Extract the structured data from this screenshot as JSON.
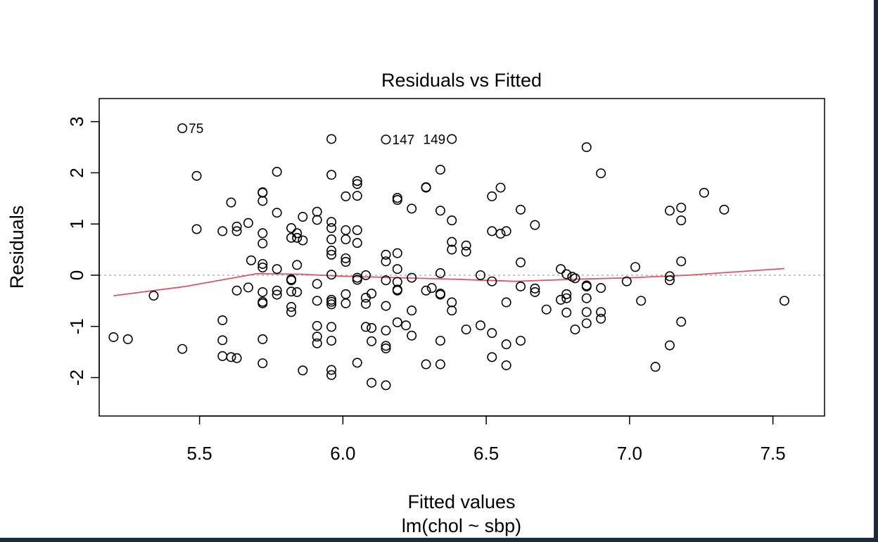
{
  "chart_data": {
    "type": "scatter",
    "title": "Residuals vs Fitted",
    "xlabel": "Fitted values",
    "subtitle": "lm(chol ~ sbp)",
    "ylabel": "Residuals",
    "xlim": [
      5.15,
      7.68
    ],
    "ylim": [
      -2.75,
      3.45
    ],
    "x_ticks": [
      5.5,
      6.0,
      6.5,
      7.0,
      7.5
    ],
    "x_tick_labels": [
      "5.5",
      "6.0",
      "6.5",
      "7.0",
      "7.5"
    ],
    "y_ticks": [
      -2,
      -1,
      0,
      1,
      2,
      3
    ],
    "y_tick_labels": [
      "-2",
      "-1",
      "0",
      "1",
      "2",
      "3"
    ],
    "reference_line": {
      "y": 0,
      "style": "dotted",
      "color": "#b0b0b0"
    },
    "smooth_color": "#df536b",
    "point_color": "#000000",
    "smooth": [
      [
        5.2,
        -0.4
      ],
      [
        5.45,
        -0.22
      ],
      [
        5.7,
        0.03
      ],
      [
        5.85,
        0.02
      ],
      [
        6.0,
        -0.02
      ],
      [
        6.2,
        -0.05
      ],
      [
        6.4,
        -0.08
      ],
      [
        6.6,
        -0.12
      ],
      [
        6.8,
        -0.08
      ],
      [
        7.0,
        -0.05
      ],
      [
        7.2,
        0.0
      ],
      [
        7.54,
        0.13
      ]
    ],
    "labeled_points": [
      {
        "label": "75",
        "x": 5.44,
        "y": 2.87,
        "side": "right"
      },
      {
        "label": "147",
        "x": 6.15,
        "y": 2.65,
        "side": "right"
      },
      {
        "label": "149",
        "x": 6.38,
        "y": 2.66,
        "side": "left"
      }
    ],
    "points": [
      [
        5.2,
        -1.21
      ],
      [
        5.25,
        -1.25
      ],
      [
        5.34,
        -0.4
      ],
      [
        5.44,
        2.87
      ],
      [
        5.44,
        -1.44
      ],
      [
        5.49,
        1.94
      ],
      [
        5.49,
        0.9
      ],
      [
        5.58,
        0.86
      ],
      [
        5.58,
        -0.88
      ],
      [
        5.58,
        -1.27
      ],
      [
        5.58,
        -1.58
      ],
      [
        5.61,
        1.42
      ],
      [
        5.61,
        -1.6
      ],
      [
        5.63,
        0.95
      ],
      [
        5.63,
        0.86
      ],
      [
        5.63,
        -0.3
      ],
      [
        5.63,
        -1.62
      ],
      [
        5.67,
        1.02
      ],
      [
        5.67,
        -0.24
      ],
      [
        5.68,
        0.29
      ],
      [
        5.72,
        1.62
      ],
      [
        5.72,
        1.61
      ],
      [
        5.72,
        1.45
      ],
      [
        5.72,
        0.82
      ],
      [
        5.72,
        0.62
      ],
      [
        5.72,
        0.22
      ],
      [
        5.72,
        0.15
      ],
      [
        5.72,
        -0.33
      ],
      [
        5.72,
        -0.52
      ],
      [
        5.72,
        -0.55
      ],
      [
        5.72,
        -1.25
      ],
      [
        5.72,
        -1.72
      ],
      [
        5.77,
        2.02
      ],
      [
        5.77,
        1.22
      ],
      [
        5.77,
        0.12
      ],
      [
        5.77,
        -0.3
      ],
      [
        5.77,
        -0.38
      ],
      [
        5.82,
        0.92
      ],
      [
        5.82,
        0.73
      ],
      [
        5.82,
        -0.08
      ],
      [
        5.82,
        -0.1
      ],
      [
        5.82,
        -0.32
      ],
      [
        5.82,
        -0.62
      ],
      [
        5.82,
        -0.72
      ],
      [
        5.84,
        0.82
      ],
      [
        5.84,
        0.73
      ],
      [
        5.84,
        0.2
      ],
      [
        5.84,
        -0.33
      ],
      [
        5.86,
        1.14
      ],
      [
        5.86,
        0.68
      ],
      [
        5.86,
        -1.86
      ],
      [
        5.91,
        1.24
      ],
      [
        5.91,
        1.08
      ],
      [
        5.91,
        -0.17
      ],
      [
        5.91,
        -0.5
      ],
      [
        5.91,
        -0.99
      ],
      [
        5.91,
        -1.2
      ],
      [
        5.91,
        -1.33
      ],
      [
        5.96,
        2.66
      ],
      [
        5.96,
        1.96
      ],
      [
        5.96,
        1.04
      ],
      [
        5.96,
        0.92
      ],
      [
        5.96,
        0.7
      ],
      [
        5.96,
        0.48
      ],
      [
        5.96,
        0.4
      ],
      [
        5.96,
        0.01
      ],
      [
        5.96,
        -0.48
      ],
      [
        5.96,
        -0.52
      ],
      [
        5.96,
        -0.57
      ],
      [
        5.96,
        -1.01
      ],
      [
        5.96,
        -1.28
      ],
      [
        5.96,
        -1.85
      ],
      [
        5.96,
        -1.95
      ],
      [
        6.01,
        1.54
      ],
      [
        6.01,
        0.88
      ],
      [
        6.01,
        0.7
      ],
      [
        6.01,
        0.33
      ],
      [
        6.01,
        0.26
      ],
      [
        6.01,
        -0.37
      ],
      [
        6.01,
        -0.55
      ],
      [
        6.05,
        1.84
      ],
      [
        6.05,
        1.78
      ],
      [
        6.05,
        1.55
      ],
      [
        6.05,
        0.88
      ],
      [
        6.05,
        0.63
      ],
      [
        6.05,
        -0.05
      ],
      [
        6.05,
        -0.09
      ],
      [
        6.05,
        -1.71
      ],
      [
        6.08,
        0.0
      ],
      [
        6.08,
        -0.44
      ],
      [
        6.08,
        -0.56
      ],
      [
        6.08,
        -1.01
      ],
      [
        6.1,
        -0.36
      ],
      [
        6.1,
        -1.03
      ],
      [
        6.1,
        -1.29
      ],
      [
        6.1,
        -2.1
      ],
      [
        6.15,
        2.65
      ],
      [
        6.15,
        0.4
      ],
      [
        6.15,
        0.27
      ],
      [
        6.15,
        -0.1
      ],
      [
        6.15,
        -0.6
      ],
      [
        6.15,
        -1.08
      ],
      [
        6.15,
        -1.38
      ],
      [
        6.15,
        -1.43
      ],
      [
        6.15,
        -2.15
      ],
      [
        6.19,
        1.51
      ],
      [
        6.19,
        1.47
      ],
      [
        6.19,
        0.43
      ],
      [
        6.19,
        0.12
      ],
      [
        6.19,
        -0.13
      ],
      [
        6.19,
        -0.28
      ],
      [
        6.19,
        -0.3
      ],
      [
        6.19,
        -0.92
      ],
      [
        6.22,
        -0.98
      ],
      [
        6.24,
        1.3
      ],
      [
        6.24,
        -0.05
      ],
      [
        6.24,
        -0.69
      ],
      [
        6.24,
        -1.18
      ],
      [
        6.29,
        1.72
      ],
      [
        6.29,
        1.71
      ],
      [
        6.29,
        -0.3
      ],
      [
        6.29,
        -1.74
      ],
      [
        6.31,
        -0.25
      ],
      [
        6.34,
        2.06
      ],
      [
        6.34,
        1.26
      ],
      [
        6.34,
        0.04
      ],
      [
        6.34,
        -0.36
      ],
      [
        6.34,
        -0.38
      ],
      [
        6.34,
        -1.28
      ],
      [
        6.34,
        -1.74
      ],
      [
        6.38,
        2.66
      ],
      [
        6.38,
        1.07
      ],
      [
        6.38,
        0.65
      ],
      [
        6.38,
        0.5
      ],
      [
        6.38,
        -0.53
      ],
      [
        6.38,
        -0.69
      ],
      [
        6.43,
        0.58
      ],
      [
        6.43,
        0.46
      ],
      [
        6.43,
        -1.06
      ],
      [
        6.48,
        0.0
      ],
      [
        6.48,
        -0.98
      ],
      [
        6.52,
        1.54
      ],
      [
        6.52,
        0.86
      ],
      [
        6.52,
        -0.12
      ],
      [
        6.52,
        -1.13
      ],
      [
        6.52,
        -1.6
      ],
      [
        6.55,
        1.71
      ],
      [
        6.55,
        0.81
      ],
      [
        6.57,
        0.86
      ],
      [
        6.57,
        -0.53
      ],
      [
        6.57,
        -1.35
      ],
      [
        6.57,
        -1.76
      ],
      [
        6.62,
        1.28
      ],
      [
        6.62,
        0.25
      ],
      [
        6.62,
        -0.22
      ],
      [
        6.62,
        -1.28
      ],
      [
        6.67,
        0.98
      ],
      [
        6.67,
        -0.26
      ],
      [
        6.67,
        -0.33
      ],
      [
        6.71,
        -0.67
      ],
      [
        6.76,
        0.12
      ],
      [
        6.76,
        -0.48
      ],
      [
        6.78,
        0.02
      ],
      [
        6.78,
        -0.37
      ],
      [
        6.78,
        -0.45
      ],
      [
        6.78,
        -0.73
      ],
      [
        6.8,
        -0.03
      ],
      [
        6.81,
        -0.06
      ],
      [
        6.81,
        -1.06
      ],
      [
        6.85,
        2.5
      ],
      [
        6.85,
        -0.2
      ],
      [
        6.85,
        -0.22
      ],
      [
        6.85,
        -0.45
      ],
      [
        6.85,
        -0.72
      ],
      [
        6.85,
        -0.94
      ],
      [
        6.9,
        1.99
      ],
      [
        6.9,
        -0.25
      ],
      [
        6.9,
        -0.72
      ],
      [
        6.9,
        -0.85
      ],
      [
        6.99,
        -0.12
      ],
      [
        7.02,
        0.16
      ],
      [
        7.04,
        -0.5
      ],
      [
        7.09,
        -1.79
      ],
      [
        7.14,
        1.26
      ],
      [
        7.14,
        -0.02
      ],
      [
        7.14,
        -0.1
      ],
      [
        7.14,
        -1.37
      ],
      [
        7.18,
        1.32
      ],
      [
        7.18,
        1.07
      ],
      [
        7.18,
        0.27
      ],
      [
        7.18,
        -0.91
      ],
      [
        7.26,
        1.61
      ],
      [
        7.33,
        1.28
      ],
      [
        7.54,
        -0.5
      ]
    ]
  }
}
